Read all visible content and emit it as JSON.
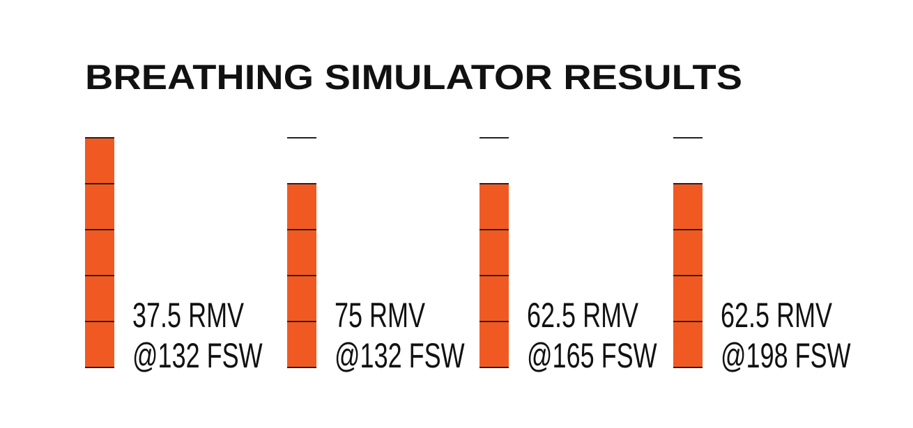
{
  "chart_data": {
    "type": "bar",
    "title": "BREATHING SIMULATOR RESULTS",
    "labels": [
      [
        "37.5 RMV",
        "@132 FSW"
      ],
      [
        "75 RMV",
        "@132 FSW"
      ],
      [
        "62.5 RMV",
        "@165 FSW"
      ],
      [
        "62.5 RMV",
        "@198 FSW"
      ]
    ],
    "values": [
      5,
      4,
      4,
      4
    ],
    "ylim": [
      0,
      5
    ],
    "color": "#f05a22"
  }
}
